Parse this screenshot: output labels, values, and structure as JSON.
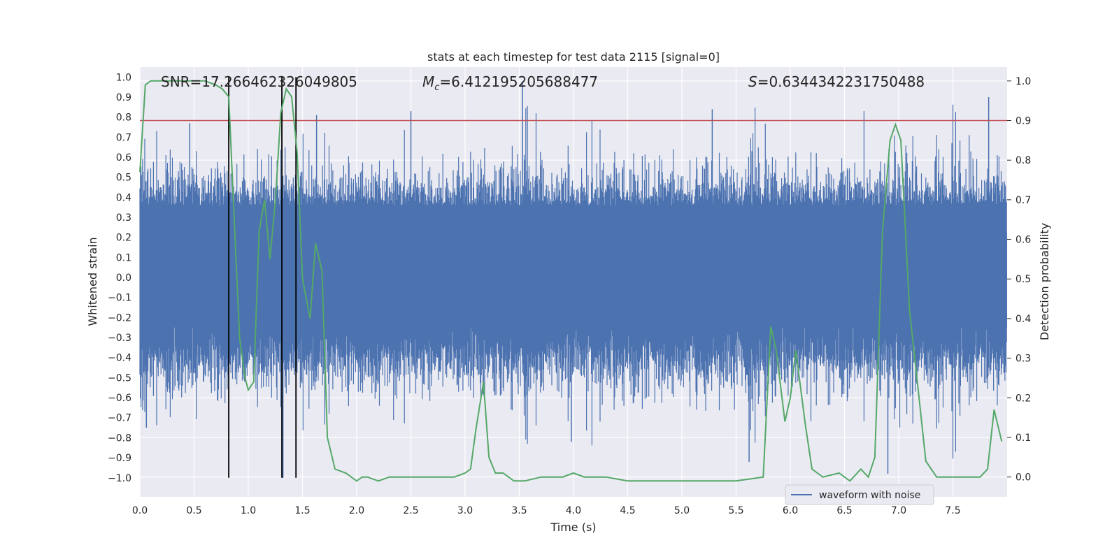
{
  "chart_data": {
    "type": "line",
    "title": "stats at each timestep for test data 2115 [signal=0]",
    "xlabel": "Time (s)",
    "ylabel_left": "Whitened strain",
    "ylabel_right": "Detection probability",
    "xlim": [
      0.0,
      8.0
    ],
    "ylim_left": [
      -1.095,
      1.05
    ],
    "ylim_right": [
      -0.05,
      1.035
    ],
    "x_ticks": [
      "0.0",
      "0.5",
      "1.0",
      "1.5",
      "2.0",
      "2.5",
      "3.0",
      "3.5",
      "4.0",
      "4.5",
      "5.0",
      "5.5",
      "6.0",
      "6.5",
      "7.0",
      "7.5"
    ],
    "y_ticks_left": [
      "1.0",
      "0.9",
      "0.8",
      "0.7",
      "0.6",
      "0.5",
      "0.4",
      "0.3",
      "0.2",
      "0.1",
      "0.0",
      "-0.1",
      "-0.2",
      "-0.3",
      "-0.4",
      "-0.5",
      "-0.6",
      "-0.7",
      "-0.8",
      "-0.9",
      "-1.0"
    ],
    "y_ticks_right": [
      "1.0",
      "0.9",
      "0.8",
      "0.7",
      "0.6",
      "0.5",
      "0.4",
      "0.3",
      "0.2",
      "0.1",
      "0.0"
    ],
    "annotations": {
      "snr": "SNR=17.266462326049805",
      "mc_symbol": "M",
      "mc_sub": "c",
      "mc_value": "=6.412195205688477",
      "s_symbol": "S",
      "s_value": "=0.6344342231750488"
    },
    "threshold": {
      "value_right_axis": 0.9,
      "color": "#c44e52"
    },
    "vertical_markers_x": [
      0.82,
      1.31,
      1.44
    ],
    "legend": {
      "label": "waveform with noise",
      "location": "lower-right"
    },
    "series": [
      {
        "name": "waveform with noise",
        "axis": "left",
        "color": "#4c72b0",
        "note": "dense whitened strain noise; notable extreme spikes listed",
        "spikes": [
          {
            "x": 0.06,
            "y": -0.75
          },
          {
            "x": 0.46,
            "y": 0.77
          },
          {
            "x": 0.82,
            "y": -0.86
          },
          {
            "x": 1.32,
            "y": -1.0
          },
          {
            "x": 1.63,
            "y": 0.81
          },
          {
            "x": 2.5,
            "y": 0.83
          },
          {
            "x": 3.53,
            "y": 0.98
          },
          {
            "x": 3.98,
            "y": -0.82
          },
          {
            "x": 5.28,
            "y": 0.84
          },
          {
            "x": 5.62,
            "y": -0.92
          },
          {
            "x": 6.9,
            "y": -0.98
          },
          {
            "x": 7.83,
            "y": 0.9
          }
        ]
      },
      {
        "name": "detection probability",
        "axis": "right",
        "color": "#55a868",
        "x": [
          0.0,
          0.05,
          0.1,
          0.2,
          0.3,
          0.4,
          0.5,
          0.6,
          0.7,
          0.76,
          0.82,
          0.87,
          0.92,
          0.97,
          1.0,
          1.05,
          1.1,
          1.15,
          1.2,
          1.25,
          1.3,
          1.35,
          1.4,
          1.45,
          1.5,
          1.57,
          1.62,
          1.68,
          1.73,
          1.8,
          1.9,
          1.95,
          2.0,
          2.05,
          2.1,
          2.2,
          2.3,
          2.4,
          2.5,
          2.6,
          2.7,
          2.8,
          2.9,
          3.0,
          3.05,
          3.1,
          3.17,
          3.22,
          3.28,
          3.35,
          3.45,
          3.55,
          3.7,
          3.9,
          4.0,
          4.1,
          4.3,
          4.5,
          4.8,
          5.0,
          5.2,
          5.5,
          5.75,
          5.82,
          5.87,
          5.95,
          6.0,
          6.05,
          6.14,
          6.2,
          6.25,
          6.3,
          6.45,
          6.55,
          6.65,
          6.72,
          6.78,
          6.85,
          6.92,
          6.97,
          7.02,
          7.1,
          7.18,
          7.25,
          7.35,
          7.45,
          7.6,
          7.75,
          7.82,
          7.88,
          7.95
        ],
        "y": [
          0.77,
          0.99,
          1.0,
          1.0,
          1.0,
          1.0,
          1.0,
          1.0,
          0.99,
          0.98,
          0.96,
          0.65,
          0.35,
          0.25,
          0.22,
          0.24,
          0.62,
          0.7,
          0.55,
          0.7,
          0.92,
          0.98,
          0.96,
          0.82,
          0.5,
          0.4,
          0.59,
          0.52,
          0.1,
          0.02,
          0.01,
          0.0,
          -0.01,
          0.0,
          0.0,
          -0.01,
          0.0,
          0.0,
          0.0,
          0.0,
          0.0,
          0.0,
          0.0,
          0.01,
          0.02,
          0.12,
          0.24,
          0.05,
          0.01,
          0.01,
          -0.01,
          -0.01,
          0.0,
          0.0,
          0.01,
          0.0,
          0.0,
          -0.01,
          -0.01,
          -0.01,
          -0.01,
          -0.01,
          0.0,
          0.38,
          0.32,
          0.14,
          0.2,
          0.32,
          0.13,
          0.02,
          0.01,
          0.0,
          0.01,
          -0.01,
          0.02,
          0.0,
          0.05,
          0.62,
          0.85,
          0.89,
          0.85,
          0.42,
          0.22,
          0.04,
          0.0,
          0.0,
          0.0,
          0.0,
          0.02,
          0.17,
          0.09
        ]
      }
    ]
  }
}
